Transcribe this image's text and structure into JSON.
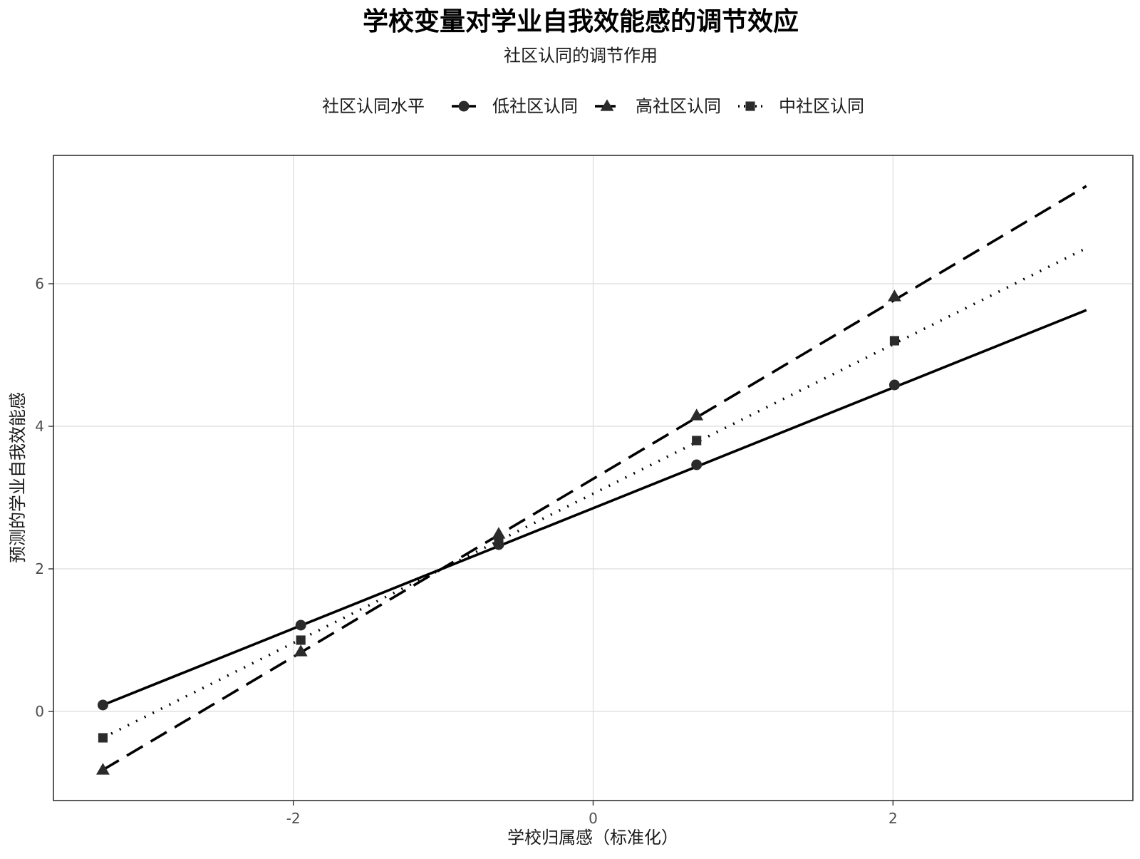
{
  "chart_data": {
    "type": "line",
    "title": "学校变量对学业自我效能感的调节效应",
    "subtitle": "社区认同的调节作用",
    "xlabel": "学校归属感（标准化）",
    "ylabel": "预测的学业自我效能感",
    "legend_title": "社区认同水平",
    "legend_position": "top",
    "grid": true,
    "xlim": [
      -3.6,
      3.6
    ],
    "ylim": [
      -1.25,
      7.8
    ],
    "xticks": [
      -2,
      0,
      2
    ],
    "xtick_labels": [
      "-2",
      "0",
      "2"
    ],
    "yticks": [
      0,
      2,
      4,
      6
    ],
    "ytick_labels": [
      "0",
      "2",
      "4",
      "6"
    ],
    "series": [
      {
        "name": "低社区认同",
        "line_style": "solid",
        "marker": "circle",
        "line": {
          "x_start": -3.27,
          "x_end": 3.29,
          "y_start": 0.09,
          "y_end": 5.63
        },
        "points": [
          {
            "x": -3.27,
            "y": 0.09
          },
          {
            "x": -1.95,
            "y": 1.21
          },
          {
            "x": -0.63,
            "y": 2.34
          },
          {
            "x": 0.69,
            "y": 3.46
          },
          {
            "x": 2.01,
            "y": 4.58
          }
        ]
      },
      {
        "name": "高社区认同",
        "line_style": "dashed",
        "marker": "triangle",
        "line": {
          "x_start": -3.27,
          "x_end": 3.29,
          "y_start": -0.82,
          "y_end": 7.37
        },
        "points": [
          {
            "x": -3.27,
            "y": -0.82
          },
          {
            "x": -1.95,
            "y": 0.84
          },
          {
            "x": -0.63,
            "y": 2.49
          },
          {
            "x": 0.69,
            "y": 4.15
          },
          {
            "x": 2.01,
            "y": 5.82
          }
        ]
      },
      {
        "name": "中社区认同",
        "line_style": "dotted",
        "marker": "square",
        "line": {
          "x_start": -3.27,
          "x_end": 3.29,
          "y_start": -0.37,
          "y_end": 6.5
        },
        "points": [
          {
            "x": -3.27,
            "y": -0.37
          },
          {
            "x": -1.95,
            "y": 1.0
          },
          {
            "x": -0.63,
            "y": 2.41
          },
          {
            "x": 0.69,
            "y": 3.8
          },
          {
            "x": 2.01,
            "y": 5.2
          }
        ]
      }
    ],
    "colors": {
      "line": "#000000",
      "marker": "#2b2b2b",
      "grid": "#dcdcdc",
      "border": "#333333",
      "tick_text": "#4d4d4d",
      "text": "#1a1a1a"
    }
  }
}
